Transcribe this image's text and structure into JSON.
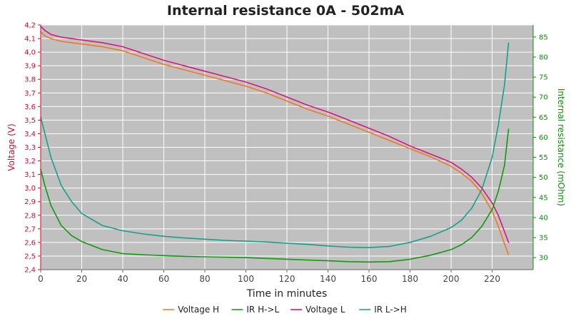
{
  "chart_data": {
    "type": "line",
    "title": "Internal resistance  0A - 502mA",
    "xlabel": "Time in minutes",
    "ylabel_left": "Voltage (V)",
    "ylabel_right": "Internal resistance (mOhm)",
    "xlim": [
      0,
      240
    ],
    "ylim_left": [
      2.4,
      4.2
    ],
    "ylim_right": [
      27,
      88
    ],
    "x_ticks": [
      0,
      20,
      40,
      60,
      80,
      100,
      120,
      140,
      160,
      180,
      200,
      220
    ],
    "y_left_ticks": [
      "2,4",
      "2,5",
      "2,6",
      "2,7",
      "2,8",
      "2,9",
      "3,0",
      "3,1",
      "3,2",
      "3,3",
      "3,4",
      "3,5",
      "3,6",
      "3,7",
      "3,8",
      "3,9",
      "4,0",
      "4,1",
      "4,2"
    ],
    "y_right_ticks": [
      "30",
      "35",
      "40",
      "45",
      "50",
      "55",
      "60",
      "65",
      "70",
      "75",
      "80",
      "85"
    ],
    "grid": true,
    "background": "#c0c0c0",
    "legend_position": "bottom-center",
    "series": [
      {
        "name": "Voltage H",
        "axis": "left",
        "color": "#f07820",
        "x": [
          0,
          2,
          5,
          10,
          20,
          30,
          40,
          50,
          60,
          70,
          80,
          90,
          100,
          110,
          120,
          130,
          140,
          150,
          160,
          170,
          180,
          190,
          200,
          205,
          210,
          215,
          220,
          223,
          226,
          228
        ],
        "y": [
          4.15,
          4.12,
          4.1,
          4.08,
          4.06,
          4.04,
          4.01,
          3.96,
          3.91,
          3.87,
          3.83,
          3.79,
          3.75,
          3.7,
          3.64,
          3.58,
          3.53,
          3.47,
          3.41,
          3.35,
          3.29,
          3.23,
          3.16,
          3.11,
          3.05,
          2.96,
          2.83,
          2.72,
          2.59,
          2.51
        ]
      },
      {
        "name": "IR H->L",
        "axis": "right",
        "color": "#119911",
        "x": [
          0,
          2,
          5,
          10,
          15,
          20,
          30,
          40,
          50,
          60,
          70,
          80,
          90,
          100,
          110,
          120,
          130,
          140,
          150,
          160,
          170,
          180,
          190,
          200,
          205,
          210,
          215,
          220,
          223,
          226,
          228
        ],
        "y": [
          52,
          48,
          43,
          38,
          35.5,
          34,
          32,
          31,
          30.7,
          30.5,
          30.3,
          30.2,
          30.1,
          30.0,
          29.8,
          29.6,
          29.4,
          29.2,
          29.0,
          28.9,
          29.0,
          29.6,
          30.6,
          32.0,
          33.2,
          35.0,
          37.8,
          42.0,
          46.5,
          53.0,
          62.0
        ]
      },
      {
        "name": "Voltage L",
        "axis": "left",
        "color": "#d8177e",
        "x": [
          0,
          2,
          5,
          10,
          20,
          30,
          40,
          50,
          60,
          70,
          80,
          90,
          100,
          110,
          120,
          130,
          140,
          150,
          160,
          170,
          180,
          190,
          200,
          205,
          210,
          215,
          220,
          223,
          226,
          228
        ],
        "y": [
          4.19,
          4.16,
          4.13,
          4.11,
          4.09,
          4.07,
          4.04,
          3.99,
          3.94,
          3.9,
          3.86,
          3.82,
          3.78,
          3.73,
          3.67,
          3.61,
          3.56,
          3.5,
          3.44,
          3.38,
          3.31,
          3.25,
          3.19,
          3.14,
          3.08,
          3.0,
          2.89,
          2.8,
          2.68,
          2.6
        ]
      },
      {
        "name": "IR L->H",
        "axis": "right",
        "color": "#1a9e8a",
        "x": [
          0,
          2,
          5,
          10,
          15,
          20,
          30,
          40,
          50,
          60,
          70,
          80,
          90,
          100,
          110,
          120,
          130,
          140,
          150,
          160,
          170,
          180,
          190,
          200,
          205,
          210,
          215,
          220,
          223,
          226,
          228
        ],
        "y": [
          65,
          61,
          55,
          48,
          44,
          41,
          38,
          36.7,
          35.9,
          35.3,
          34.9,
          34.6,
          34.3,
          34.1,
          33.9,
          33.6,
          33.3,
          32.9,
          32.6,
          32.5,
          32.8,
          33.8,
          35.3,
          37.5,
          39.3,
          42.3,
          47.0,
          55.0,
          63.0,
          73.0,
          83.5
        ]
      }
    ]
  }
}
